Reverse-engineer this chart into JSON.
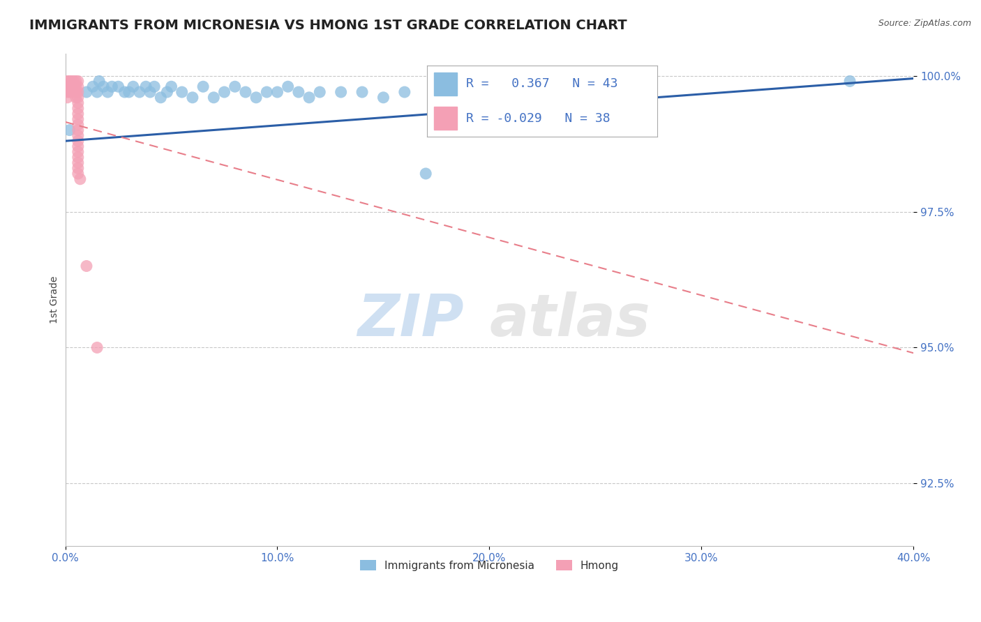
{
  "title": "IMMIGRANTS FROM MICRONESIA VS HMONG 1ST GRADE CORRELATION CHART",
  "source": "Source: ZipAtlas.com",
  "ylabel": "1st Grade",
  "xlim": [
    0.0,
    0.4
  ],
  "ylim": [
    0.9135,
    1.004
  ],
  "xticks": [
    0.0,
    0.1,
    0.2,
    0.3,
    0.4
  ],
  "xtick_labels": [
    "0.0%",
    "10.0%",
    "20.0%",
    "30.0%",
    "40.0%"
  ],
  "yticks": [
    0.925,
    0.95,
    0.975,
    1.0
  ],
  "ytick_labels": [
    "92.5%",
    "95.0%",
    "97.5%",
    "100.0%"
  ],
  "blue_R": 0.367,
  "blue_N": 43,
  "pink_R": -0.029,
  "pink_N": 38,
  "blue_color": "#8bbde0",
  "pink_color": "#f4a0b5",
  "blue_line_color": "#2b5ea7",
  "pink_line_color": "#e87e8a",
  "grid_color": "#c8c8c8",
  "tick_color": "#4472c4",
  "watermark_zip": "ZIP",
  "watermark_atlas": "atlas",
  "blue_x": [
    0.002,
    0.01,
    0.013,
    0.015,
    0.016,
    0.018,
    0.02,
    0.022,
    0.025,
    0.028,
    0.03,
    0.032,
    0.035,
    0.038,
    0.04,
    0.042,
    0.045,
    0.048,
    0.05,
    0.055,
    0.06,
    0.065,
    0.07,
    0.075,
    0.08,
    0.085,
    0.09,
    0.095,
    0.1,
    0.105,
    0.11,
    0.115,
    0.12,
    0.13,
    0.14,
    0.15,
    0.16,
    0.17,
    0.18,
    0.2,
    0.21,
    0.22,
    0.37
  ],
  "blue_y": [
    0.99,
    0.997,
    0.998,
    0.997,
    0.999,
    0.998,
    0.997,
    0.998,
    0.998,
    0.997,
    0.997,
    0.998,
    0.997,
    0.998,
    0.997,
    0.998,
    0.996,
    0.997,
    0.998,
    0.997,
    0.996,
    0.998,
    0.996,
    0.997,
    0.998,
    0.997,
    0.996,
    0.997,
    0.997,
    0.998,
    0.997,
    0.996,
    0.997,
    0.997,
    0.997,
    0.996,
    0.997,
    0.982,
    0.997,
    0.997,
    0.99,
    0.997,
    0.999
  ],
  "blue_line_x0": 0.0,
  "blue_line_x1": 0.4,
  "blue_line_y0": 0.988,
  "blue_line_y1": 0.9995,
  "pink_line_x0": 0.0,
  "pink_line_x1": 0.4,
  "pink_line_y0": 0.9915,
  "pink_line_y1": 0.949,
  "pink_x": [
    0.001,
    0.001,
    0.001,
    0.001,
    0.002,
    0.002,
    0.002,
    0.003,
    0.003,
    0.003,
    0.004,
    0.004,
    0.004,
    0.005,
    0.005,
    0.005,
    0.005,
    0.006,
    0.006,
    0.006,
    0.006,
    0.006,
    0.006,
    0.006,
    0.006,
    0.006,
    0.006,
    0.006,
    0.006,
    0.006,
    0.006,
    0.006,
    0.006,
    0.006,
    0.006,
    0.007,
    0.01,
    0.015
  ],
  "pink_y": [
    0.999,
    0.998,
    0.997,
    0.996,
    0.999,
    0.998,
    0.997,
    0.999,
    0.998,
    0.997,
    0.999,
    0.998,
    0.997,
    0.999,
    0.998,
    0.997,
    0.996,
    0.999,
    0.998,
    0.997,
    0.996,
    0.995,
    0.994,
    0.993,
    0.992,
    0.991,
    0.99,
    0.989,
    0.988,
    0.987,
    0.986,
    0.985,
    0.984,
    0.983,
    0.982,
    0.981,
    0.965,
    0.95
  ]
}
